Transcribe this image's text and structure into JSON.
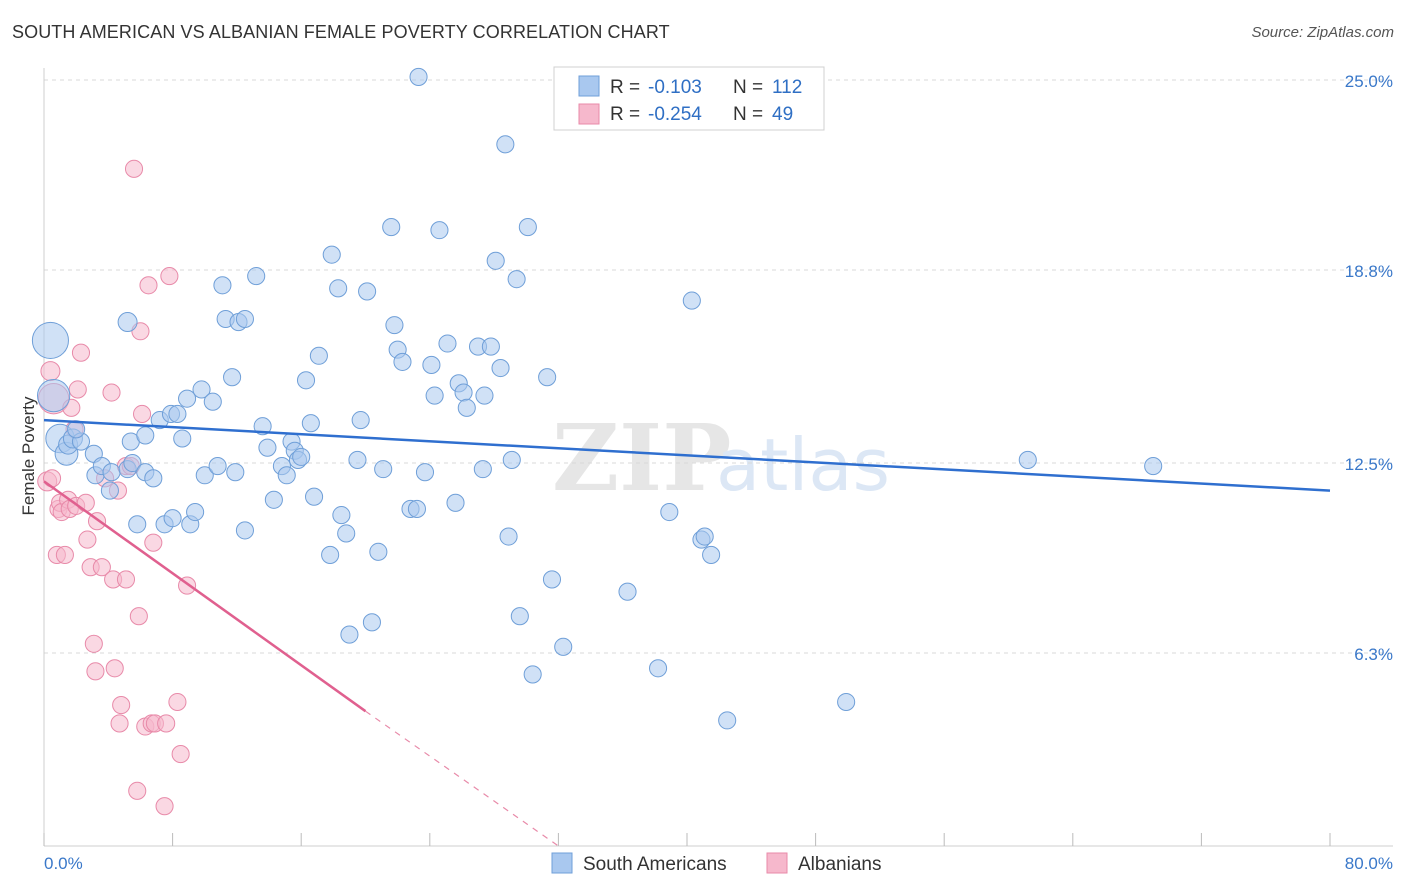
{
  "title": "SOUTH AMERICAN VS ALBANIAN FEMALE POVERTY CORRELATION CHART",
  "source": "Source: ZipAtlas.com",
  "watermark": {
    "zip": "ZIP",
    "atlas": "atlas"
  },
  "colors": {
    "blue_fill": "#a9c8ef",
    "blue_stroke": "#6f9fd8",
    "blue_line": "#2f6fcf",
    "pink_fill": "#f6b8cc",
    "pink_stroke": "#e88aa9",
    "pink_line": "#e0608f",
    "grid": "#d8d8d8",
    "axis_text": "#3a78c9"
  },
  "legend": {
    "rows": [
      {
        "r_label": "R =",
        "r_value": "-0.103",
        "n_label": "N =",
        "n_value": "112",
        "series": "south_americans"
      },
      {
        "r_label": "R =",
        "r_value": "-0.254",
        "n_label": "N =",
        "n_value": "49",
        "series": "albanians"
      }
    ]
  },
  "bottom_legend": [
    "South Americans",
    "Albanians"
  ],
  "chart_data": {
    "type": "scatter",
    "title": "SOUTH AMERICAN VS ALBANIAN FEMALE POVERTY CORRELATION CHART",
    "xlabel": "",
    "ylabel": "Female Poverty",
    "xlim": [
      0,
      80
    ],
    "ylim": [
      0,
      25.0
    ],
    "x_tick_labels": [
      "0.0%",
      "80.0%"
    ],
    "y_ticks": [
      6.3,
      12.5,
      18.8,
      25.0
    ],
    "y_tick_labels": [
      "6.3%",
      "12.5%",
      "18.8%",
      "25.0%"
    ],
    "grid": "horizontal dashed",
    "legend_position": "top-center",
    "series": [
      {
        "name": "South Americans",
        "color": "#a9c8ef",
        "trend": {
          "x": [
            0,
            80
          ],
          "y": [
            13.9,
            11.6
          ]
        },
        "points": [
          [
            0.4,
            16.5,
            1.9
          ],
          [
            0.6,
            14.7,
            1.7
          ],
          [
            1.0,
            13.3,
            1.5
          ],
          [
            1.4,
            12.8,
            1.2
          ],
          [
            1.5,
            13.1,
            1.0
          ],
          [
            1.8,
            13.3,
            1.0
          ],
          [
            2.3,
            13.2,
            0.9
          ],
          [
            2.0,
            13.6,
            0.9
          ],
          [
            3.1,
            12.8,
            0.9
          ],
          [
            3.2,
            12.1,
            0.9
          ],
          [
            3.6,
            12.4,
            0.9
          ],
          [
            4.1,
            11.6,
            0.9
          ],
          [
            4.2,
            12.2,
            0.9
          ],
          [
            5.2,
            17.1,
            1.0
          ],
          [
            5.2,
            12.3,
            0.9
          ],
          [
            5.4,
            13.2,
            0.9
          ],
          [
            5.5,
            12.5,
            0.9
          ],
          [
            5.8,
            10.5,
            0.9
          ],
          [
            6.3,
            12.2,
            0.9
          ],
          [
            6.3,
            13.4,
            0.9
          ],
          [
            6.8,
            12.0,
            0.9
          ],
          [
            7.2,
            13.9,
            0.9
          ],
          [
            7.5,
            10.5,
            0.9
          ],
          [
            7.9,
            14.1,
            0.9
          ],
          [
            8.0,
            10.7,
            0.9
          ],
          [
            8.3,
            14.1,
            0.9
          ],
          [
            8.6,
            13.3,
            0.9
          ],
          [
            8.9,
            14.6,
            0.9
          ],
          [
            9.1,
            10.5,
            0.9
          ],
          [
            9.4,
            10.9,
            0.9
          ],
          [
            9.8,
            14.9,
            0.9
          ],
          [
            10.0,
            12.1,
            0.9
          ],
          [
            10.5,
            14.5,
            0.9
          ],
          [
            10.8,
            12.4,
            0.9
          ],
          [
            11.1,
            18.3,
            0.9
          ],
          [
            11.3,
            17.2,
            0.9
          ],
          [
            11.7,
            15.3,
            0.9
          ],
          [
            11.9,
            12.2,
            0.9
          ],
          [
            12.1,
            17.1,
            0.9
          ],
          [
            12.5,
            17.2,
            0.9
          ],
          [
            12.5,
            10.3,
            0.9
          ],
          [
            13.2,
            18.6,
            0.9
          ],
          [
            13.6,
            13.7,
            0.9
          ],
          [
            13.9,
            13.0,
            0.9
          ],
          [
            14.3,
            11.3,
            0.9
          ],
          [
            14.8,
            12.4,
            0.9
          ],
          [
            15.1,
            12.1,
            0.9
          ],
          [
            15.4,
            13.2,
            0.9
          ],
          [
            15.6,
            12.9,
            0.9
          ],
          [
            15.8,
            12.6,
            0.9
          ],
          [
            16.0,
            12.7,
            0.9
          ],
          [
            16.3,
            15.2,
            0.9
          ],
          [
            16.6,
            13.8,
            0.9
          ],
          [
            16.8,
            11.4,
            0.9
          ],
          [
            17.1,
            16.0,
            0.9
          ],
          [
            17.8,
            9.5,
            0.9
          ],
          [
            17.9,
            19.3,
            0.9
          ],
          [
            18.3,
            18.2,
            0.9
          ],
          [
            18.5,
            10.8,
            0.9
          ],
          [
            18.8,
            10.2,
            0.9
          ],
          [
            19.0,
            6.9,
            0.9
          ],
          [
            19.5,
            12.6,
            0.9
          ],
          [
            19.7,
            13.9,
            0.9
          ],
          [
            20.1,
            18.1,
            0.9
          ],
          [
            20.4,
            7.3,
            0.9
          ],
          [
            20.8,
            9.6,
            0.9
          ],
          [
            21.1,
            12.3,
            0.9
          ],
          [
            21.6,
            20.2,
            0.9
          ],
          [
            21.8,
            17.0,
            0.9
          ],
          [
            22.0,
            16.2,
            0.9
          ],
          [
            22.3,
            15.8,
            0.9
          ],
          [
            22.8,
            11.0,
            0.9
          ],
          [
            23.2,
            11.0,
            0.9
          ],
          [
            23.7,
            12.2,
            0.9
          ],
          [
            24.1,
            15.7,
            0.9
          ],
          [
            24.3,
            14.7,
            0.9
          ],
          [
            24.6,
            20.1,
            0.9
          ],
          [
            25.1,
            16.4,
            0.9
          ],
          [
            25.6,
            11.2,
            0.9
          ],
          [
            25.8,
            15.1,
            0.9
          ],
          [
            26.1,
            14.8,
            0.9
          ],
          [
            26.3,
            14.3,
            0.9
          ],
          [
            27.0,
            16.3,
            0.9
          ],
          [
            27.3,
            12.3,
            0.9
          ],
          [
            27.4,
            14.7,
            0.9
          ],
          [
            27.8,
            16.3,
            0.9
          ],
          [
            28.1,
            19.1,
            0.9
          ],
          [
            28.4,
            15.6,
            0.9
          ],
          [
            28.7,
            22.9,
            0.9
          ],
          [
            28.9,
            10.1,
            0.9
          ],
          [
            29.1,
            12.6,
            0.9
          ],
          [
            29.4,
            18.5,
            0.9
          ],
          [
            29.6,
            7.5,
            0.9
          ],
          [
            30.1,
            20.2,
            0.9
          ],
          [
            30.4,
            5.6,
            0.9
          ],
          [
            31.3,
            15.3,
            0.9
          ],
          [
            31.6,
            8.7,
            0.9
          ],
          [
            32.3,
            6.5,
            0.9
          ],
          [
            23.3,
            25.1,
            0.9
          ],
          [
            36.3,
            8.3,
            0.9
          ],
          [
            38.2,
            5.8,
            0.9
          ],
          [
            38.9,
            10.9,
            0.9
          ],
          [
            40.3,
            17.8,
            0.9
          ],
          [
            40.9,
            10.0,
            0.9
          ],
          [
            41.1,
            10.1,
            0.9
          ],
          [
            41.5,
            9.5,
            0.9
          ],
          [
            42.5,
            4.1,
            0.9
          ],
          [
            49.9,
            4.7,
            0.9
          ],
          [
            61.2,
            12.6,
            0.9
          ],
          [
            69.0,
            12.4,
            0.9
          ]
        ]
      },
      {
        "name": "Albanians",
        "color": "#f6b8cc",
        "trend": {
          "x": [
            0,
            20
          ],
          "y": [
            11.9,
            4.4
          ]
        },
        "trend_extension": {
          "x": [
            20,
            32
          ],
          "y": [
            4.4,
            0.0
          ]
        },
        "points": [
          [
            0.2,
            11.9,
            1.0
          ],
          [
            0.4,
            15.5,
            1.0
          ],
          [
            0.6,
            14.6,
            1.6
          ],
          [
            0.5,
            12.0,
            0.9
          ],
          [
            0.8,
            9.5,
            0.9
          ],
          [
            0.9,
            11.0,
            0.9
          ],
          [
            1.0,
            11.2,
            0.9
          ],
          [
            1.1,
            10.9,
            0.9
          ],
          [
            1.3,
            9.5,
            0.9
          ],
          [
            1.5,
            11.3,
            0.9
          ],
          [
            1.6,
            11.0,
            0.9
          ],
          [
            1.7,
            14.3,
            0.9
          ],
          [
            1.9,
            13.6,
            0.9
          ],
          [
            2.0,
            11.1,
            0.9
          ],
          [
            2.1,
            14.9,
            0.9
          ],
          [
            2.3,
            16.1,
            0.9
          ],
          [
            2.6,
            11.2,
            0.9
          ],
          [
            2.7,
            10.0,
            0.9
          ],
          [
            2.9,
            9.1,
            0.9
          ],
          [
            3.1,
            6.6,
            0.9
          ],
          [
            3.2,
            5.7,
            0.9
          ],
          [
            3.3,
            10.6,
            0.9
          ],
          [
            3.6,
            9.1,
            0.9
          ],
          [
            3.8,
            12.0,
            0.9
          ],
          [
            4.2,
            14.8,
            0.9
          ],
          [
            4.3,
            8.7,
            0.9
          ],
          [
            4.4,
            5.8,
            0.9
          ],
          [
            4.6,
            11.6,
            0.9
          ],
          [
            4.7,
            4.0,
            0.9
          ],
          [
            4.8,
            4.6,
            0.9
          ],
          [
            5.1,
            12.4,
            0.9
          ],
          [
            5.1,
            8.7,
            0.9
          ],
          [
            5.4,
            12.4,
            0.9
          ],
          [
            5.6,
            22.1,
            0.9
          ],
          [
            5.8,
            1.8,
            0.9
          ],
          [
            5.9,
            7.5,
            0.9
          ],
          [
            6.0,
            16.8,
            0.9
          ],
          [
            6.1,
            14.1,
            0.9
          ],
          [
            6.3,
            3.9,
            0.9
          ],
          [
            6.5,
            18.3,
            0.9
          ],
          [
            6.7,
            4.0,
            0.9
          ],
          [
            6.8,
            9.9,
            0.9
          ],
          [
            6.9,
            4.0,
            0.9
          ],
          [
            7.5,
            1.3,
            0.9
          ],
          [
            7.6,
            4.0,
            0.9
          ],
          [
            7.8,
            18.6,
            0.9
          ],
          [
            8.3,
            4.7,
            0.9
          ],
          [
            8.5,
            3.0,
            0.9
          ],
          [
            8.9,
            8.5,
            0.9
          ]
        ]
      }
    ]
  }
}
